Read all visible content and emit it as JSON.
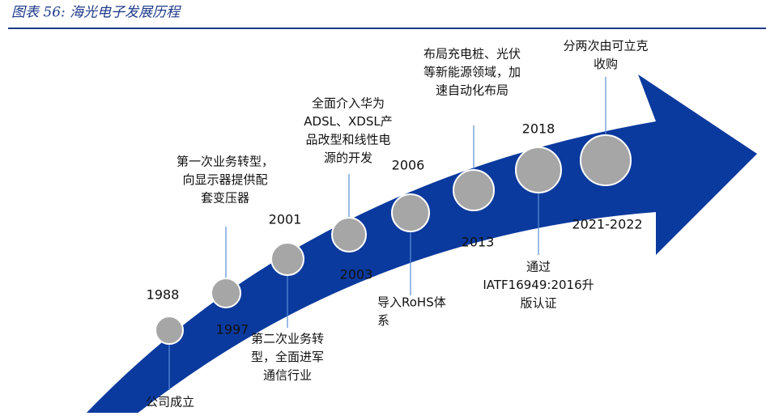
{
  "header": {
    "title": "图表 56: 海光电子发展历程"
  },
  "milestones": [
    {
      "year": "1988",
      "description": [
        "公司成立"
      ]
    },
    {
      "year": "1997",
      "description": [
        "第一次业务转型，",
        "向显示器提供配",
        "套变压器"
      ]
    },
    {
      "year": "2001",
      "description": [
        "第二次业务转",
        "型，全面进军",
        "通信行业"
      ]
    },
    {
      "year": "2003",
      "description": [
        "全面介入华为",
        "ADSL、XDSL产",
        "品改型和线性电",
        "源的开发"
      ]
    },
    {
      "year": "2006",
      "description": [
        "导入RoHS体",
        "系"
      ]
    },
    {
      "year": "2013",
      "description": [
        "布局充电桩、光伏",
        "等新能源领域，加",
        "速自动化布局"
      ]
    },
    {
      "year": "2018",
      "description": [
        "通过",
        "IATF16949:2016升",
        "版认证"
      ]
    },
    {
      "year": "2021-2022",
      "description": [
        "分两次由可立克",
        "收购"
      ]
    }
  ]
}
